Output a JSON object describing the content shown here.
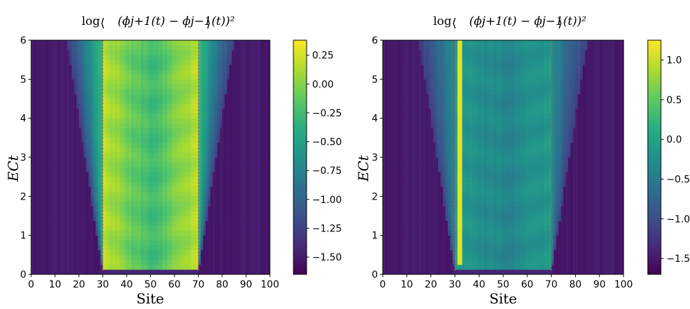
{
  "chart_data": [
    {
      "type": "heatmap",
      "title_prefix": "log",
      "title_expr": "(ϕj+1(t) − ϕj−1(t))²",
      "xlabel": "Site",
      "ylabel": "ECt",
      "xlim": [
        0,
        100
      ],
      "ylim": [
        0,
        6
      ],
      "xticks": [
        0,
        10,
        20,
        30,
        40,
        50,
        60,
        70,
        80,
        90,
        100
      ],
      "yticks": [
        0,
        1,
        2,
        3,
        4,
        5,
        6
      ],
      "colorbar": {
        "vmin": -1.65,
        "vmax": 0.38,
        "ticks": [
          "0.25",
          "0.00",
          "−0.25",
          "−0.50",
          "−0.75",
          "−1.00",
          "−1.25",
          "−1.50"
        ],
        "tick_values": [
          0.25,
          0.0,
          -0.25,
          -0.5,
          -0.75,
          -1.0,
          -1.25,
          -1.5
        ]
      },
      "region": {
        "start": 30,
        "end": 70,
        "dashed_lines": [
          30,
          70
        ]
      },
      "lightcone_half_width_at_top": 15,
      "bright_columns": [],
      "colormap": "viridis"
    },
    {
      "type": "heatmap",
      "title_prefix": "log",
      "title_expr": "(ϕj+1(t) − ϕj−1(t))²",
      "xlabel": "Site",
      "ylabel": "ECt",
      "xlim": [
        0,
        100
      ],
      "ylim": [
        0,
        6
      ],
      "xticks": [
        0,
        10,
        20,
        30,
        40,
        50,
        60,
        70,
        80,
        90,
        100
      ],
      "yticks": [
        0,
        1,
        2,
        3,
        4,
        5,
        6
      ],
      "colorbar": {
        "vmin": -1.7,
        "vmax": 1.25,
        "ticks": [
          "1.0",
          "0.5",
          "0.0",
          "−0.5",
          "−1.0",
          "−1.5"
        ],
        "tick_values": [
          1.0,
          0.5,
          0.0,
          -0.5,
          -1.0,
          -1.5
        ]
      },
      "region": {
        "start": 30,
        "end": 70,
        "dashed_lines": [
          30,
          70
        ]
      },
      "lightcone_half_width_at_top": 15,
      "bright_columns": [
        32
      ],
      "colormap": "viridis"
    }
  ]
}
